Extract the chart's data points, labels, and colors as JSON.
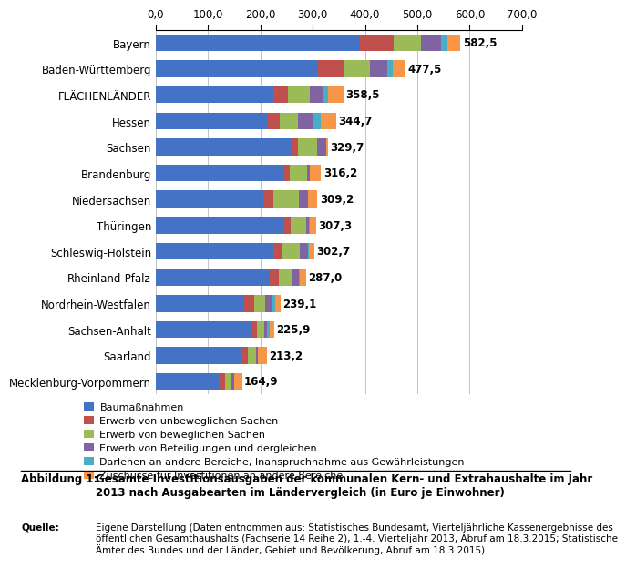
{
  "categories": [
    "Bayern",
    "Baden-Württemberg",
    "FLÄCHENLÄNDER",
    "Hessen",
    "Sachsen",
    "Brandenburg",
    "Niedersachsen",
    "Thüringen",
    "Schleswig-Holstein",
    "Rheinland-Pfalz",
    "Nordrhein-Westfalen",
    "Sachsen-Anhalt",
    "Saarland",
    "Mecklenburg-Vorpommern"
  ],
  "totals": [
    582.5,
    477.5,
    358.5,
    344.7,
    329.7,
    316.2,
    309.2,
    307.3,
    302.7,
    287.0,
    239.1,
    225.9,
    213.2,
    164.9
  ],
  "segments": {
    "Baumaßnahmen": [
      390,
      310,
      225,
      215,
      260,
      245,
      205,
      245,
      225,
      218,
      170,
      185,
      162,
      120
    ],
    "Erwerb von unbeweglichen Sachen": [
      65,
      50,
      28,
      22,
      12,
      12,
      20,
      13,
      18,
      18,
      18,
      8,
      14,
      13
    ],
    "Erwerb von beweglichen Sachen": [
      52,
      50,
      42,
      35,
      36,
      32,
      48,
      30,
      32,
      26,
      22,
      15,
      15,
      12
    ],
    "Erwerb von Beteiligungen und dergleichen": [
      38,
      32,
      26,
      30,
      18,
      6,
      18,
      5,
      16,
      12,
      14,
      5,
      5,
      5
    ],
    "Darlehen an andere Bereiche, Inanspruchnahme aus Gewährleistungen": [
      12,
      11,
      8,
      14,
      0,
      0,
      0,
      2,
      2,
      2,
      5,
      5,
      0,
      0
    ],
    "Zuschüsse für Investitionen an andere Bereiche": [
      25.5,
      24.5,
      29.5,
      28.7,
      3.7,
      21.2,
      18.2,
      12.3,
      9.7,
      11.0,
      10.1,
      7.9,
      17.2,
      14.9
    ]
  },
  "colors": {
    "Baumaßnahmen": "#4472C4",
    "Erwerb von unbeweglichen Sachen": "#C0504D",
    "Erwerb von beweglichen Sachen": "#9BBB59",
    "Erwerb von Beteiligungen und dergleichen": "#8064A2",
    "Darlehen an andere Bereiche, Inanspruchnahme aus Gewährleistungen": "#4BACC6",
    "Zuschüsse für Investitionen an andere Bereiche": "#F79646"
  },
  "xlim": [
    0,
    700
  ],
  "xticks": [
    0,
    100,
    200,
    300,
    400,
    500,
    600,
    700
  ],
  "xtick_labels": [
    "0,0",
    "100,0",
    "200,0",
    "300,0",
    "400,0",
    "500,0",
    "600,0",
    "700,0"
  ],
  "figure_caption_label": "Abbildung 1:",
  "figure_caption_text": "Gesamte Investitionsausgaben der kommunalen Kern- und Extrahaushalte im Jahr\n2013 nach Ausgabearten im Ländervergleich (in Euro je Einwohner)",
  "source_label": "Quelle:",
  "source_text": "Eigene Darstellung (Daten entnommen aus: Statistisches Bundesamt, Vierteljährliche Kassenergebnisse des\nöffentlichen Gesamthaushalts (Fachserie 14 Reihe 2), 1.-4. Vierteljahr 2013, Abruf am 18.3.2015; Statistische\nÄmter des Bundes und der Länder, Gebiet und Bevölkerung, Abruf am 18.3.2015)"
}
